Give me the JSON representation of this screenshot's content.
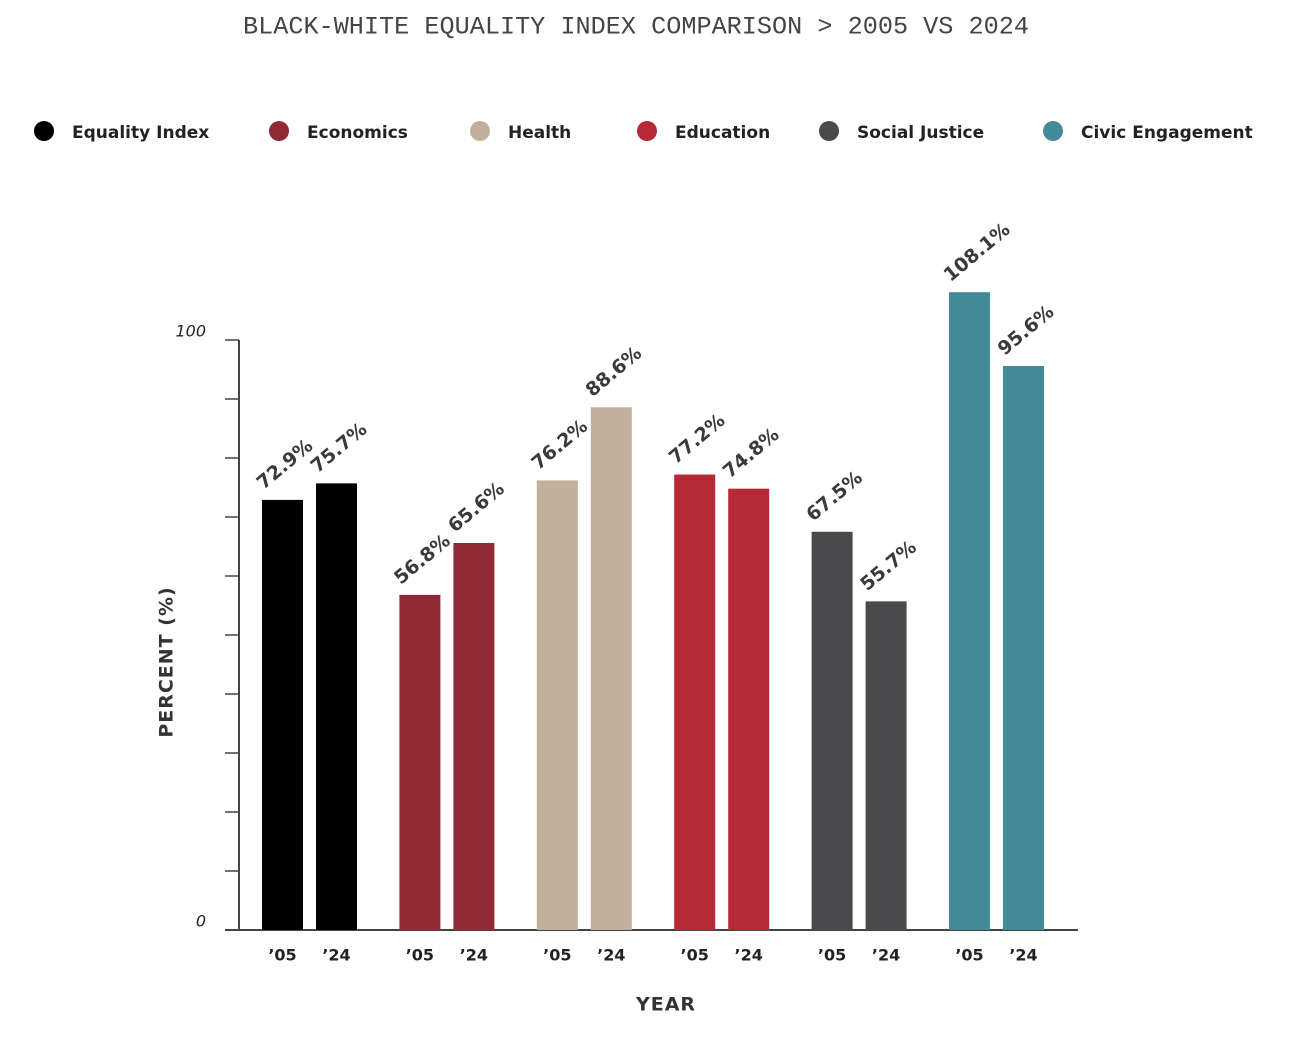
{
  "chart_data": {
    "type": "bar",
    "title": "BLACK-WHITE EQUALITY INDEX COMPARISON > 2005 VS 2024",
    "y_label": "PERCENT (%)",
    "x_label": "YEAR",
    "categories": [
      "’05",
      "’24"
    ],
    "series": [
      {
        "name": "Equality Index",
        "color": "#000000",
        "values": [
          72.9,
          75.7
        ],
        "value_labels": [
          "72.9%",
          "75.7%"
        ]
      },
      {
        "name": "Economics",
        "color": "#922a35",
        "values": [
          56.8,
          65.6
        ],
        "value_labels": [
          "56.8%",
          "65.6%"
        ]
      },
      {
        "name": "Health",
        "color": "#c2b09c",
        "values": [
          76.2,
          88.6
        ],
        "value_labels": [
          "76.2%",
          "88.6%"
        ]
      },
      {
        "name": "Education",
        "color": "#b52a35",
        "values": [
          77.2,
          74.8
        ],
        "value_labels": [
          "77.2%",
          "74.8%"
        ]
      },
      {
        "name": "Social Justice",
        "color": "#4a4a4c",
        "values": [
          67.5,
          55.7
        ],
        "value_labels": [
          "67.5%",
          "55.7%"
        ]
      },
      {
        "name": "Civic Engagement",
        "color": "#438b98",
        "values": [
          108.1,
          95.6
        ],
        "value_labels": [
          "108.1%",
          "95.6%"
        ]
      }
    ],
    "ylim": [
      0,
      100
    ],
    "yticks": [
      0,
      100
    ],
    "minor_yticks": [
      10,
      20,
      30,
      40,
      50,
      60,
      70,
      80,
      90
    ],
    "legend": "top"
  }
}
